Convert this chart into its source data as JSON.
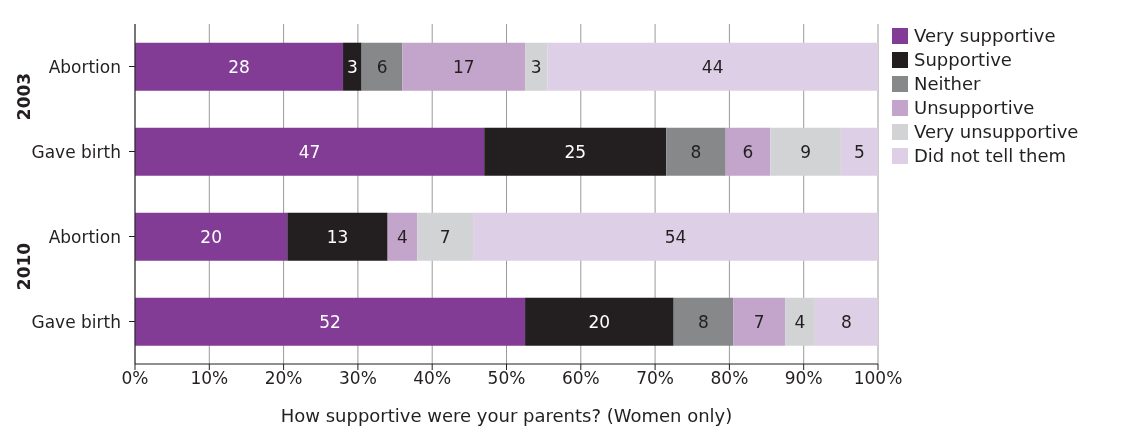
{
  "chart_data": {
    "type": "bar",
    "orientation": "horizontal",
    "stacked": true,
    "categories": [
      "Abortion",
      "Gave birth",
      "Abortion",
      "Gave birth"
    ],
    "series": [
      {
        "name": "Very supportive",
        "color": "#833c96",
        "values": [
          28,
          47,
          20.5,
          52.5
        ],
        "value_labels": [
          "28",
          "47",
          "20",
          "52"
        ]
      },
      {
        "name": "Supportive",
        "color": "#231f20",
        "values": [
          2.5,
          24.5,
          13.5,
          20
        ],
        "value_labels": [
          "3",
          "25",
          "13",
          "20"
        ]
      },
      {
        "name": "Neither",
        "color": "#878889",
        "values": [
          5.5,
          8,
          null,
          8
        ],
        "value_labels": [
          "6",
          "8",
          null,
          "8"
        ]
      },
      {
        "name": "Unsupportive",
        "color": "#c3a5cc",
        "values": [
          16.5,
          6,
          4,
          7
        ],
        "value_labels": [
          "17",
          "6",
          "4",
          "7"
        ]
      },
      {
        "name": "Very unsupportive",
        "color": "#d2d3d5",
        "values": [
          3,
          9.5,
          7.5,
          4
        ],
        "value_labels": [
          "3",
          "9",
          "7",
          "4"
        ]
      },
      {
        "name": "Did not tell them",
        "color": "#ddcfe5",
        "values": [
          44.5,
          5,
          54.5,
          8.5
        ],
        "value_labels": [
          "44",
          "5",
          "54",
          "8"
        ]
      }
    ],
    "xlim": [
      0,
      100
    ],
    "xticks": [
      {
        "value": 0,
        "label": "0%"
      },
      {
        "value": 10,
        "label": "10%"
      },
      {
        "value": 20,
        "label": "20%"
      },
      {
        "value": 30,
        "label": "30%"
      },
      {
        "value": 40,
        "label": "40%"
      },
      {
        "value": 50,
        "label": "50%"
      },
      {
        "value": 60,
        "label": "60%"
      },
      {
        "value": 70,
        "label": "70%"
      },
      {
        "value": 80,
        "label": "80%"
      },
      {
        "value": 90,
        "label": "90%"
      },
      {
        "value": 100,
        "label": "100%"
      }
    ],
    "xlabel": "How supportive were your parents? (Women only)",
    "annotations": [
      "2003",
      "2010"
    ],
    "grid": "x",
    "legend": "right"
  }
}
